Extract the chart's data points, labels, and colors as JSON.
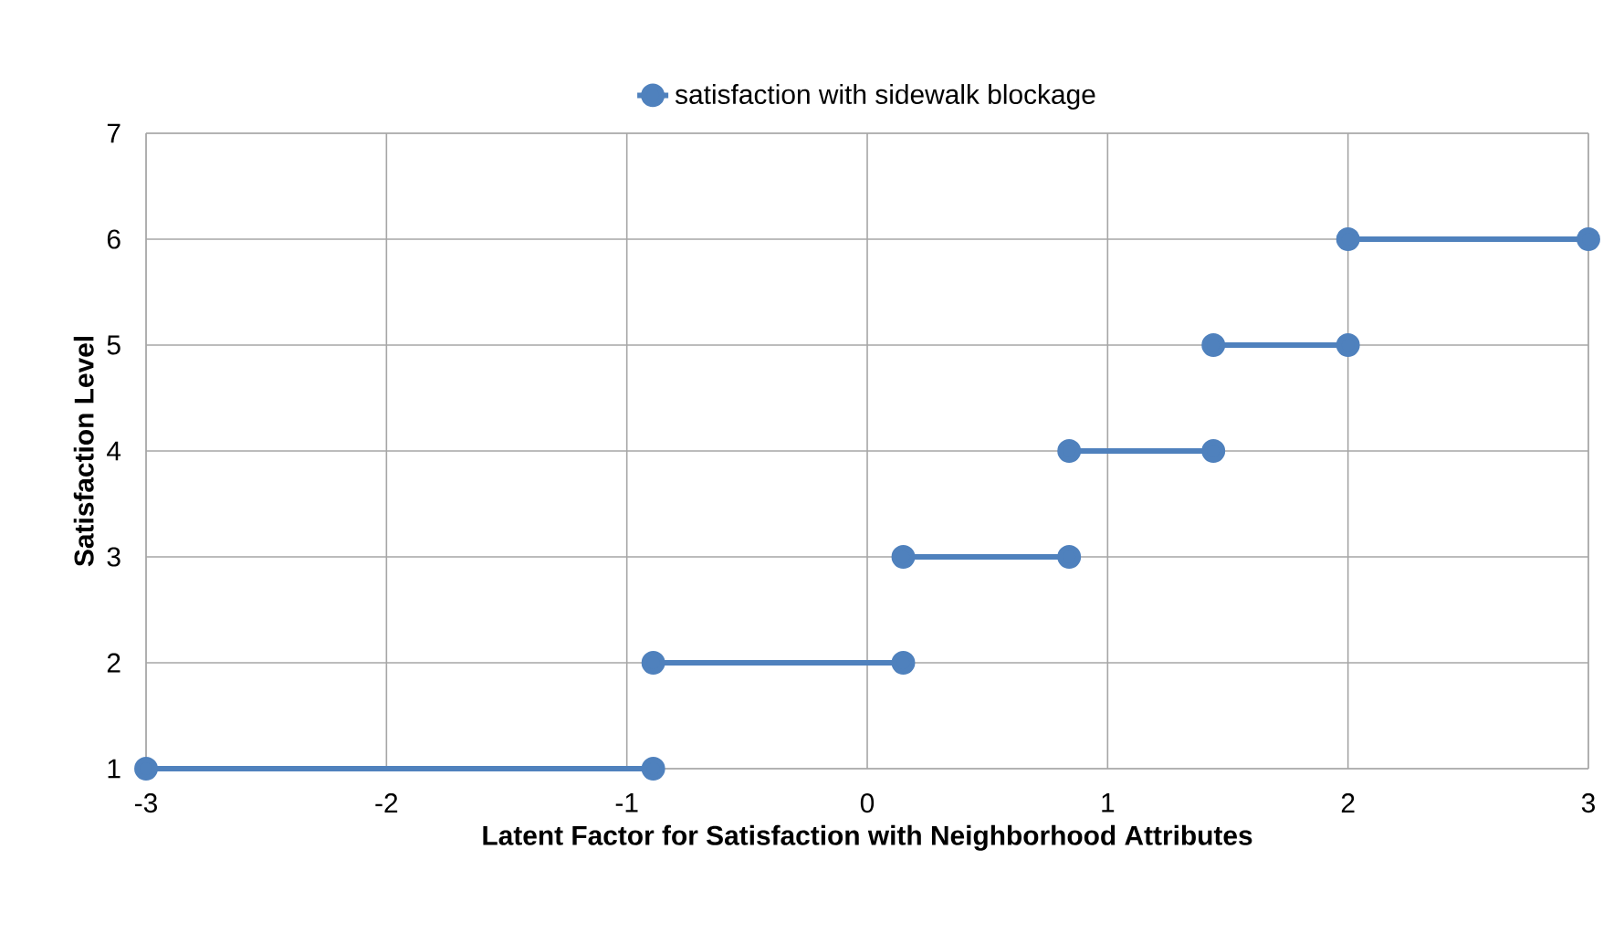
{
  "chart_data": {
    "type": "line",
    "xlabel": "Latent Factor for Satisfaction with Neighborhood Attributes",
    "ylabel": "Satisfaction Level",
    "x": [
      -3,
      -0.89,
      null,
      -0.89,
      0.15,
      null,
      0.15,
      0.84,
      null,
      0.84,
      1.44,
      null,
      1.44,
      2,
      null,
      2,
      3
    ],
    "series": [
      {
        "name": "satisfaction with sidewalk blockage",
        "color": "#4f81bd",
        "values": [
          1,
          1,
          null,
          2,
          2,
          null,
          3,
          3,
          null,
          4,
          4,
          null,
          5,
          5,
          null,
          6,
          6
        ]
      }
    ],
    "xlim": [
      -3,
      3
    ],
    "ylim": [
      1,
      7
    ],
    "xticks": [
      -3,
      -2,
      -1,
      0,
      1,
      2,
      3
    ],
    "yticks": [
      1,
      2,
      3,
      4,
      5,
      6,
      7
    ],
    "grid": true,
    "legend": "top",
    "marker": "circle",
    "line_style": "solid"
  }
}
